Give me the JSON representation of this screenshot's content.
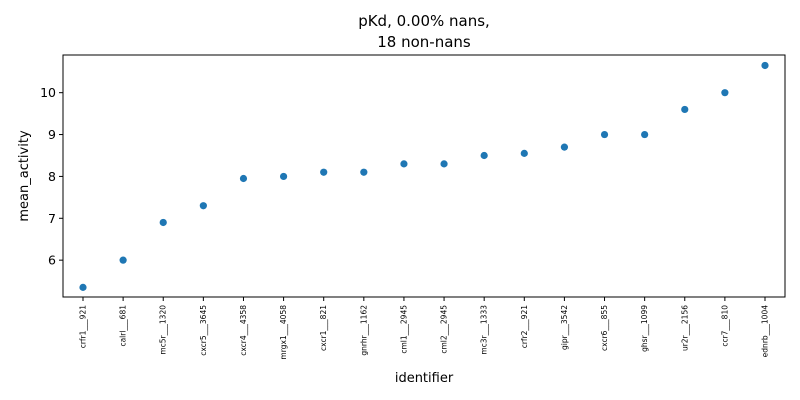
{
  "chart_data": {
    "type": "scatter",
    "title": [
      "pKd, 0.00% nans,",
      "18 non-nans"
    ],
    "xlabel": "identifier",
    "ylabel": "mean_activity",
    "categories": [
      "crfr1___921",
      "calrl___681",
      "mc5r___1320",
      "cxcr5___3645",
      "cxcr4___4358",
      "mrgx1___4058",
      "cxcr1___821",
      "gnrhr___1162",
      "cml1___2945",
      "cml2___2945",
      "mc3r___1333",
      "crfr2___921",
      "gipr___3542",
      "cxcr6___855",
      "ghsr___1099",
      "ur2r___2156",
      "ccr7___810",
      "ednrb___1004"
    ],
    "values": [
      5.35,
      6.0,
      6.9,
      7.3,
      7.95,
      8.0,
      8.1,
      8.1,
      8.3,
      8.3,
      8.5,
      8.55,
      8.7,
      9.0,
      9.0,
      9.6,
      10.0,
      10.65
    ],
    "yticks": [
      6,
      7,
      8,
      9,
      10
    ],
    "ylim": [
      5.12,
      10.9
    ],
    "grid": false,
    "marker_color": "#1f77b4"
  }
}
